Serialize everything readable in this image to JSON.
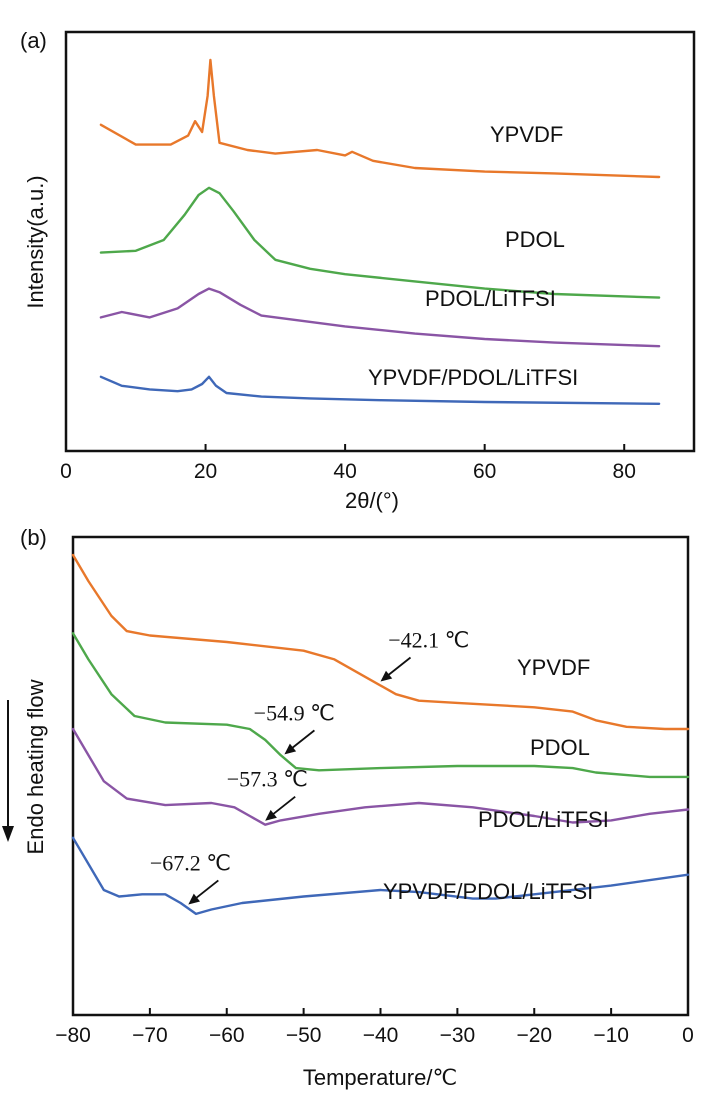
{
  "chart_data": [
    {
      "panel": "(a)",
      "type": "line",
      "xlabel": "2θ/(°)",
      "ylabel": "Intensity(a.u.)",
      "xlim": [
        0,
        90
      ],
      "xticks": [
        0,
        20,
        40,
        60,
        80
      ],
      "yticks_shown": false,
      "series": [
        {
          "name": "YPVDF",
          "color": "#E8782B",
          "points": [
            [
              5,
              0.82
            ],
            [
              10,
              0.765
            ],
            [
              15,
              0.765
            ],
            [
              17.5,
              0.79
            ],
            [
              18.5,
              0.83
            ],
            [
              19.5,
              0.8
            ],
            [
              20.3,
              0.9
            ],
            [
              20.7,
              1.0
            ],
            [
              21.2,
              0.9
            ],
            [
              22,
              0.77
            ],
            [
              26,
              0.75
            ],
            [
              30,
              0.74
            ],
            [
              36,
              0.75
            ],
            [
              40,
              0.735
            ],
            [
              41,
              0.745
            ],
            [
              44,
              0.72
            ],
            [
              50,
              0.7
            ],
            [
              60,
              0.69
            ],
            [
              70,
              0.685
            ],
            [
              85,
              0.675
            ]
          ]
        },
        {
          "name": "PDOL",
          "color": "#4EA84B",
          "points": [
            [
              5,
              0.465
            ],
            [
              10,
              0.47
            ],
            [
              14,
              0.5
            ],
            [
              17,
              0.57
            ],
            [
              19,
              0.625
            ],
            [
              20.5,
              0.645
            ],
            [
              22,
              0.63
            ],
            [
              24,
              0.58
            ],
            [
              27,
              0.5
            ],
            [
              30,
              0.445
            ],
            [
              35,
              0.42
            ],
            [
              40,
              0.405
            ],
            [
              50,
              0.385
            ],
            [
              60,
              0.365
            ],
            [
              70,
              0.35
            ],
            [
              85,
              0.34
            ]
          ]
        },
        {
          "name": "PDOL/LiTFSI",
          "color": "#8A55A5",
          "points": [
            [
              5,
              0.285
            ],
            [
              8,
              0.3
            ],
            [
              12,
              0.285
            ],
            [
              16,
              0.31
            ],
            [
              19,
              0.35
            ],
            [
              20.5,
              0.365
            ],
            [
              22,
              0.355
            ],
            [
              25,
              0.32
            ],
            [
              28,
              0.29
            ],
            [
              32,
              0.28
            ],
            [
              40,
              0.26
            ],
            [
              50,
              0.24
            ],
            [
              60,
              0.225
            ],
            [
              70,
              0.215
            ],
            [
              85,
              0.205
            ]
          ]
        },
        {
          "name": "YPVDF/PDOL/LiTFSI",
          "color": "#3F68B8",
          "points": [
            [
              5,
              0.12
            ],
            [
              8,
              0.095
            ],
            [
              12,
              0.085
            ],
            [
              16,
              0.08
            ],
            [
              18,
              0.085
            ],
            [
              19.5,
              0.1
            ],
            [
              20.5,
              0.12
            ],
            [
              21.5,
              0.095
            ],
            [
              23,
              0.075
            ],
            [
              28,
              0.065
            ],
            [
              35,
              0.06
            ],
            [
              45,
              0.055
            ],
            [
              60,
              0.05
            ],
            [
              85,
              0.045
            ]
          ]
        }
      ]
    },
    {
      "panel": "(b)",
      "type": "line",
      "xlabel": "Temperature/℃",
      "ylabel": "Endo heating flow",
      "xlim": [
        -80,
        0
      ],
      "xticks": [
        -80,
        -70,
        -60,
        -50,
        -40,
        -30,
        -20,
        -10,
        0
      ],
      "yticks_shown": false,
      "series": [
        {
          "name": "YPVDF",
          "color": "#E8782B",
          "annotation": "−42.1 ℃",
          "marker_x": -40,
          "text_x": -39,
          "points": [
            [
              -80,
              1.0
            ],
            [
              -78,
              0.94
            ],
            [
              -75,
              0.86
            ],
            [
              -73,
              0.825
            ],
            [
              -70,
              0.815
            ],
            [
              -60,
              0.8
            ],
            [
              -50,
              0.78
            ],
            [
              -46,
              0.76
            ],
            [
              -42,
              0.72
            ],
            [
              -38,
              0.68
            ],
            [
              -35,
              0.665
            ],
            [
              -30,
              0.66
            ],
            [
              -20,
              0.65
            ],
            [
              -15,
              0.64
            ],
            [
              -12,
              0.62
            ],
            [
              -8,
              0.605
            ],
            [
              -3,
              0.6
            ],
            [
              0,
              0.6
            ]
          ]
        },
        {
          "name": "PDOL",
          "color": "#4EA84B",
          "annotation": "−54.9 ℃",
          "marker_x": -52.5,
          "text_x": -56.5,
          "points": [
            [
              -80,
              0.82
            ],
            [
              -78,
              0.76
            ],
            [
              -75,
              0.68
            ],
            [
              -72,
              0.63
            ],
            [
              -68,
              0.615
            ],
            [
              -60,
              0.61
            ],
            [
              -57,
              0.6
            ],
            [
              -55,
              0.575
            ],
            [
              -53,
              0.54
            ],
            [
              -51,
              0.51
            ],
            [
              -48,
              0.505
            ],
            [
              -40,
              0.51
            ],
            [
              -30,
              0.515
            ],
            [
              -20,
              0.515
            ],
            [
              -15,
              0.51
            ],
            [
              -12,
              0.5
            ],
            [
              -5,
              0.49
            ],
            [
              0,
              0.49
            ]
          ]
        },
        {
          "name": "PDOL/LiTFSI",
          "color": "#8A55A5",
          "annotation": "−57.3 ℃",
          "marker_x": -55,
          "text_x": -60,
          "points": [
            [
              -80,
              0.6
            ],
            [
              -78,
              0.54
            ],
            [
              -76,
              0.48
            ],
            [
              -73,
              0.44
            ],
            [
              -68,
              0.425
            ],
            [
              -62,
              0.43
            ],
            [
              -59,
              0.42
            ],
            [
              -57,
              0.4
            ],
            [
              -55,
              0.38
            ],
            [
              -53,
              0.39
            ],
            [
              -48,
              0.405
            ],
            [
              -42,
              0.42
            ],
            [
              -35,
              0.43
            ],
            [
              -28,
              0.42
            ],
            [
              -20,
              0.4
            ],
            [
              -15,
              0.385
            ],
            [
              -10,
              0.39
            ],
            [
              -5,
              0.405
            ],
            [
              0,
              0.415
            ]
          ]
        },
        {
          "name": "YPVDF/PDOL/LiTFSI",
          "color": "#3F68B8",
          "annotation": "−67.2 ℃",
          "marker_x": -65,
          "text_x": -70,
          "points": [
            [
              -80,
              0.35
            ],
            [
              -78,
              0.29
            ],
            [
              -76,
              0.23
            ],
            [
              -74,
              0.215
            ],
            [
              -71,
              0.22
            ],
            [
              -68,
              0.22
            ],
            [
              -66,
              0.2
            ],
            [
              -64,
              0.175
            ],
            [
              -62,
              0.185
            ],
            [
              -58,
              0.2
            ],
            [
              -50,
              0.215
            ],
            [
              -40,
              0.23
            ],
            [
              -35,
              0.225
            ],
            [
              -28,
              0.21
            ],
            [
              -25,
              0.21
            ],
            [
              -20,
              0.22
            ],
            [
              -10,
              0.24
            ],
            [
              0,
              0.265
            ]
          ]
        }
      ]
    }
  ]
}
